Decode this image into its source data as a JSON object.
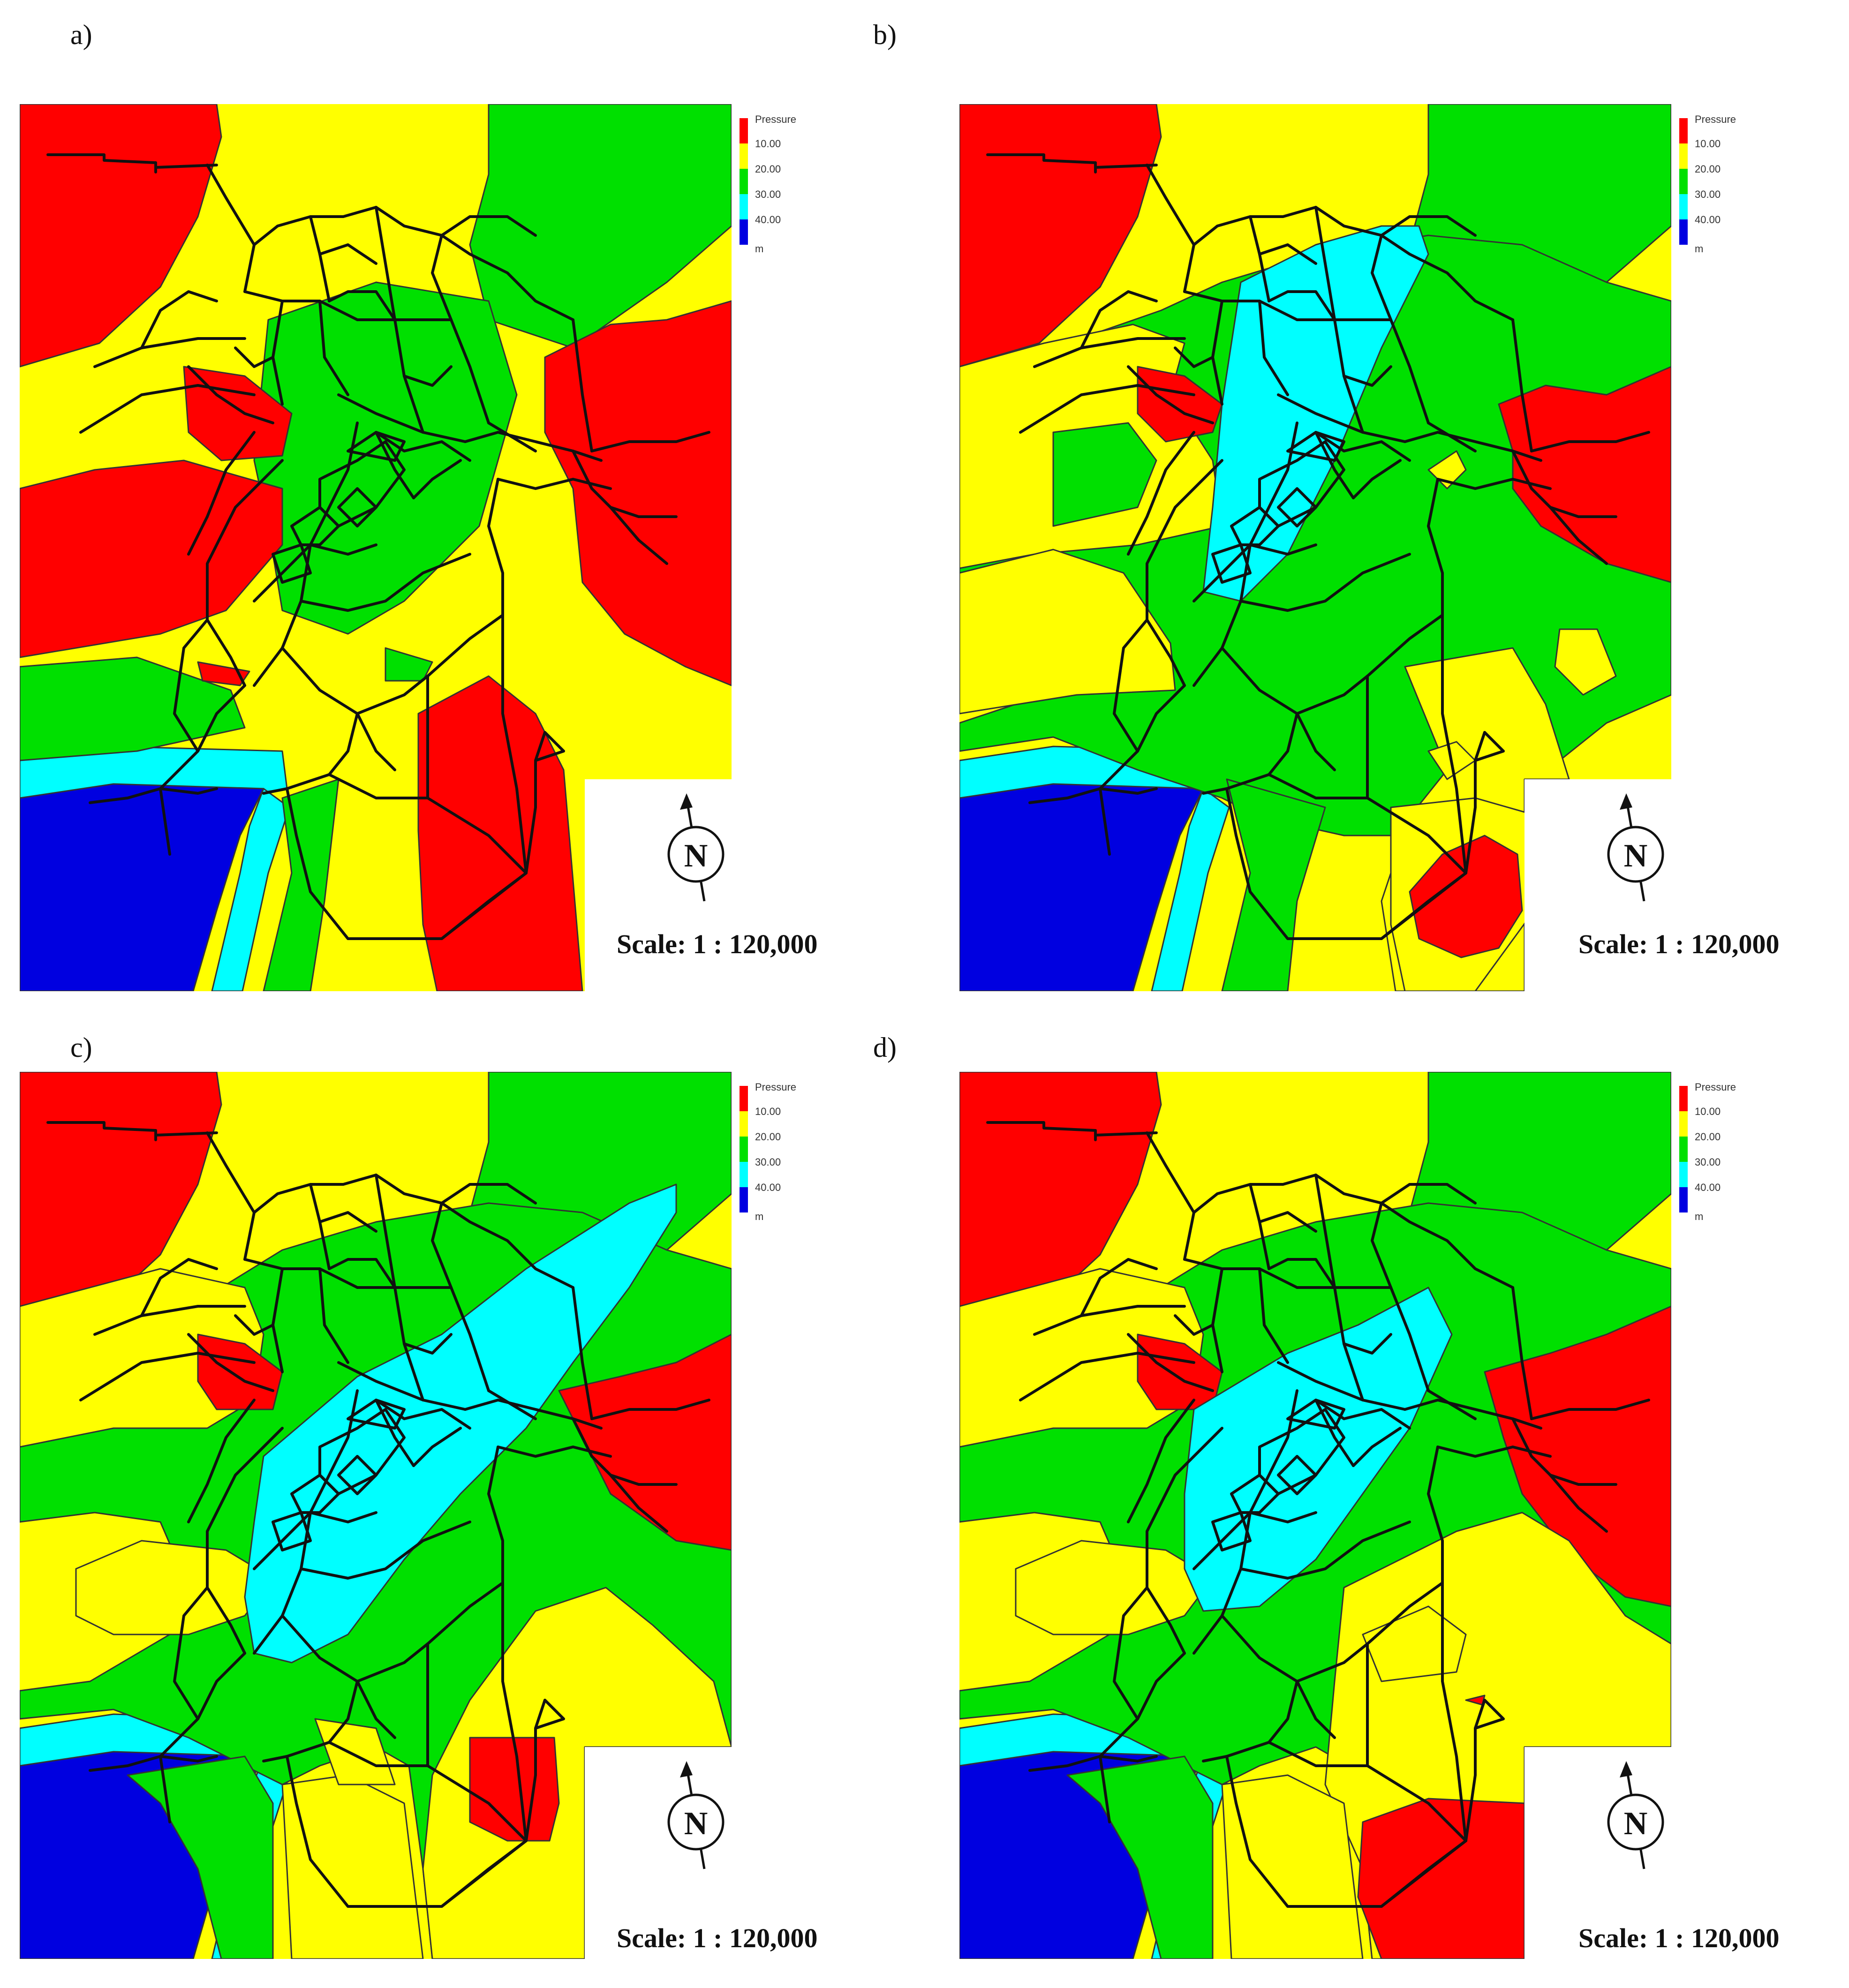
{
  "panels": [
    {
      "label": "a)",
      "variant": "a"
    },
    {
      "label": "b)",
      "variant": "b"
    },
    {
      "label": "c)",
      "variant": "c"
    },
    {
      "label": "d)",
      "variant": "d"
    }
  ],
  "legend": {
    "title": "Pressure",
    "ticks": [
      "10.00",
      "20.00",
      "30.00",
      "40.00"
    ],
    "unit": "m",
    "colors": [
      "#ff0000",
      "#ffff00",
      "#00e000",
      "#00ffff",
      "#0000e0"
    ]
  },
  "scale_label": "Scale: 1 : 120,000",
  "north_label": "N"
}
